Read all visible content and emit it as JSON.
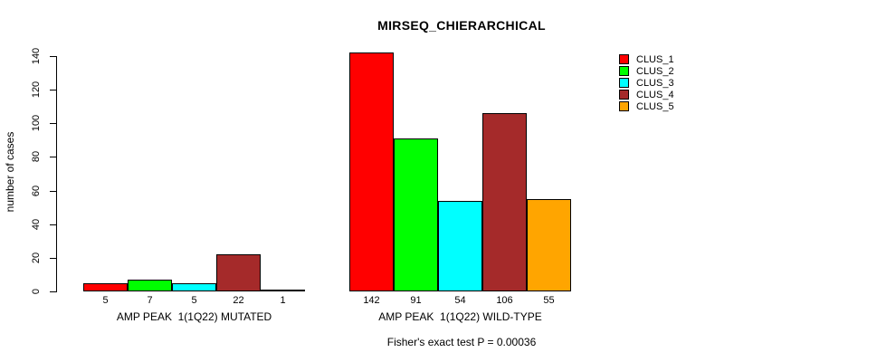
{
  "title": "MIRSEQ_CHIERARCHICAL",
  "chart_data": {
    "type": "bar",
    "title": "MIRSEQ_CHIERARCHICAL",
    "xlabel": "",
    "ylabel": "number of cases",
    "ylim": [
      0,
      140
    ],
    "yticks": [
      0,
      20,
      40,
      60,
      80,
      100,
      120,
      140
    ],
    "grid": false,
    "legend_position": "top-right",
    "series": [
      {
        "name": "CLUS_1",
        "color": "#FF0000"
      },
      {
        "name": "CLUS_2",
        "color": "#00FF00"
      },
      {
        "name": "CLUS_3",
        "color": "#00FFFF"
      },
      {
        "name": "CLUS_4",
        "color": "#A52A2A"
      },
      {
        "name": "CLUS_5",
        "color": "#FFA500"
      }
    ],
    "groups": [
      {
        "label": "AMP PEAK  1(1Q22) MUTATED",
        "values": [
          5,
          7,
          5,
          22,
          1
        ]
      },
      {
        "label": "AMP PEAK  1(1Q22) WILD-TYPE",
        "values": [
          142,
          91,
          54,
          106,
          55
        ]
      }
    ],
    "footnote": "Fisher's exact test P = 0.00036"
  }
}
